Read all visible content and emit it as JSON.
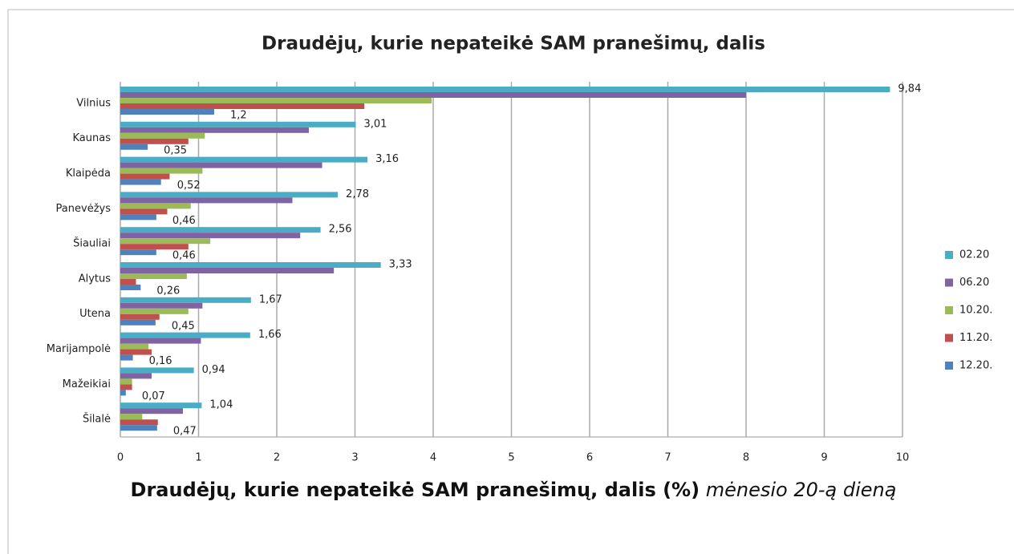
{
  "chart_data": {
    "type": "barh",
    "title": "Draudėjų, kurie nepateikė SAM pranešimų, dalis",
    "x_label": "Draudėjų, kurie nepateikė SAM pranešimų, dalis (%)",
    "x_label_note": "mėnesio 20-ą dieną",
    "categories": [
      "Vilnius",
      "Kaunas",
      "Klaipėda",
      "Panevėžys",
      "Šiauliai",
      "Alytus",
      "Utena",
      "Marijampolė",
      "Mažeikiai",
      "Šilalė"
    ],
    "series": [
      {
        "name": "02.20",
        "color": "#4bacc6",
        "values": [
          9.84,
          3.01,
          3.16,
          2.78,
          2.56,
          3.33,
          1.67,
          1.66,
          0.94,
          1.04
        ],
        "value_labels": [
          "9,84",
          "3,01",
          "3,16",
          "2,78",
          "2,56",
          "3,33",
          "1,67",
          "1,66",
          "0,94",
          "1,04"
        ]
      },
      {
        "name": "06.20",
        "color": "#8064a2",
        "values": [
          8.0,
          2.41,
          2.58,
          2.2,
          2.3,
          2.73,
          1.05,
          1.03,
          0.4,
          0.8
        ]
      },
      {
        "name": "10.20.",
        "color": "#9bbb59",
        "values": [
          3.98,
          1.08,
          1.05,
          0.9,
          1.15,
          0.85,
          0.87,
          0.36,
          0.15,
          0.28
        ]
      },
      {
        "name": "11.20.",
        "color": "#c0504d",
        "values": [
          3.12,
          0.87,
          0.63,
          0.6,
          0.87,
          0.2,
          0.5,
          0.4,
          0.15,
          0.48
        ]
      },
      {
        "name": "12.20.",
        "color": "#4f81bd",
        "values": [
          1.2,
          0.35,
          0.52,
          0.46,
          0.46,
          0.26,
          0.45,
          0.16,
          0.07,
          0.47
        ],
        "value_labels": [
          "1,2",
          "0,35",
          "0,52",
          "0,46",
          "0,46",
          "0,26",
          "0,45",
          "0,16",
          "0,07",
          "0,47"
        ]
      }
    ],
    "xlim": [
      0,
      10
    ],
    "xticks": [
      0,
      1,
      2,
      3,
      4,
      5,
      6,
      7,
      8,
      9,
      10
    ],
    "grid": true,
    "legend": "right"
  }
}
